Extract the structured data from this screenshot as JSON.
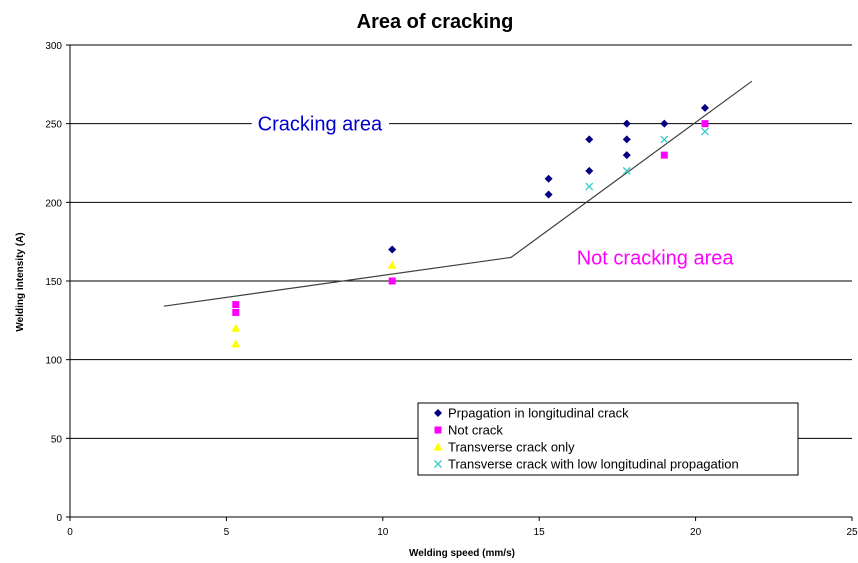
{
  "chart_data": {
    "type": "scatter",
    "title": "Area of cracking",
    "xlabel": "Welding speed  (mm/s)",
    "ylabel": "Welding intensity (A)",
    "xlim": [
      0,
      25
    ],
    "ylim": [
      0,
      300
    ],
    "xticks": [
      0,
      5,
      10,
      15,
      20,
      25
    ],
    "yticks": [
      0,
      50,
      100,
      150,
      200,
      250,
      300
    ],
    "grid": "horizontal",
    "legend_position": "bottom-right",
    "series": [
      {
        "name": "Prpagation in longitudinal crack",
        "marker": "diamond",
        "color": "#000080",
        "points": [
          [
            10.3,
            170
          ],
          [
            15.3,
            215
          ],
          [
            15.3,
            205
          ],
          [
            16.6,
            240
          ],
          [
            16.6,
            220
          ],
          [
            17.8,
            250
          ],
          [
            17.8,
            240
          ],
          [
            17.8,
            230
          ],
          [
            19.0,
            250
          ],
          [
            20.3,
            260
          ]
        ]
      },
      {
        "name": "Not crack",
        "marker": "square",
        "color": "#FF00FF",
        "points": [
          [
            5.3,
            135
          ],
          [
            5.3,
            130
          ],
          [
            10.3,
            150
          ],
          [
            19.0,
            230
          ],
          [
            20.3,
            250
          ]
        ]
      },
      {
        "name": "Transverse crack only",
        "marker": "triangle",
        "color": "#FFFF00",
        "points": [
          [
            5.3,
            120
          ],
          [
            5.3,
            110
          ],
          [
            10.3,
            160
          ]
        ]
      },
      {
        "name": "Transverse crack  with low longitudinal propagation",
        "marker": "x",
        "color": "#33CCCC",
        "points": [
          [
            16.6,
            210
          ],
          [
            17.8,
            220
          ],
          [
            19.0,
            240
          ],
          [
            20.3,
            245
          ]
        ]
      }
    ],
    "boundary_line": {
      "color": "#404040",
      "points": [
        [
          3.0,
          134
        ],
        [
          14.1,
          165
        ],
        [
          21.8,
          277
        ]
      ]
    },
    "annotations": [
      {
        "text": "Cracking area",
        "color": "#0000CC",
        "at": [
          6.0,
          250
        ]
      },
      {
        "text": "Not cracking area",
        "color": "#FF00FF",
        "at": [
          16.2,
          165
        ]
      }
    ]
  }
}
